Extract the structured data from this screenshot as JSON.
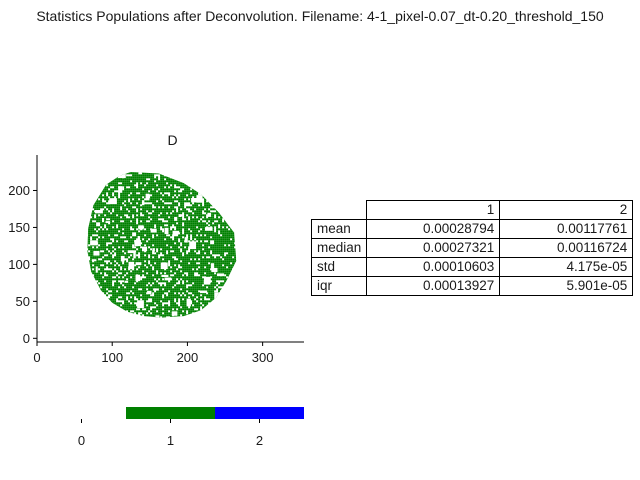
{
  "figure_title": "Statistics Populations after Deconvolution. Filename: 4-1_pixel-0.07_dt-0.20_threshold_150",
  "colors": {
    "population_1": "#008000",
    "population_2": "#0000ff",
    "axis": "#000000",
    "text": "#1a1a1a"
  },
  "chart_data": [
    {
      "type": "scatter",
      "title": "D",
      "xlim": [
        0,
        355
      ],
      "ylim": [
        -5,
        248
      ],
      "x_ticks": [
        0,
        100,
        200,
        300
      ],
      "y_ticks": [
        0,
        50,
        100,
        150,
        200
      ],
      "x_tick_labels": [
        "0",
        "100",
        "200",
        "300"
      ],
      "y_tick_labels": [
        "0",
        "50",
        "100",
        "150",
        "200"
      ],
      "xlabel": "",
      "ylabel": "",
      "grid": false,
      "series": [
        {
          "color": "#008000",
          "outline": [
            [
              125,
              225
            ],
            [
              162,
              223
            ],
            [
              195,
              210
            ],
            [
              218,
              195
            ],
            [
              242,
              170
            ],
            [
              262,
              143
            ],
            [
              265,
              105
            ],
            [
              252,
              78
            ],
            [
              238,
              55
            ],
            [
              218,
              38
            ],
            [
              195,
              30
            ],
            [
              165,
              28
            ],
            [
              142,
              30
            ],
            [
              120,
              36
            ],
            [
              100,
              48
            ],
            [
              85,
              65
            ],
            [
              72,
              90
            ],
            [
              67,
              118
            ],
            [
              68,
              148
            ],
            [
              75,
              180
            ],
            [
              92,
              208
            ],
            [
              110,
              220
            ]
          ]
        }
      ]
    },
    {
      "type": "heatmap",
      "title": "",
      "xlim": [
        -0.5,
        2.5
      ],
      "x_ticks": [
        0,
        1,
        2
      ],
      "x_tick_labels": [
        "0",
        "1",
        "2"
      ],
      "cells": [
        {
          "value": 1,
          "color": "#008000"
        },
        {
          "value": 2,
          "color": "#0000ff"
        }
      ]
    },
    {
      "type": "table",
      "columns": [
        "1",
        "2"
      ],
      "rows": [
        {
          "label": "mean",
          "values": [
            "0.00028794",
            "0.00117761"
          ]
        },
        {
          "label": "median",
          "values": [
            "0.00027321",
            "0.00116724"
          ]
        },
        {
          "label": "std",
          "values": [
            "0.00010603",
            "4.175e-05"
          ]
        },
        {
          "label": "iqr",
          "values": [
            "0.00013927",
            "5.901e-05"
          ]
        }
      ]
    }
  ]
}
